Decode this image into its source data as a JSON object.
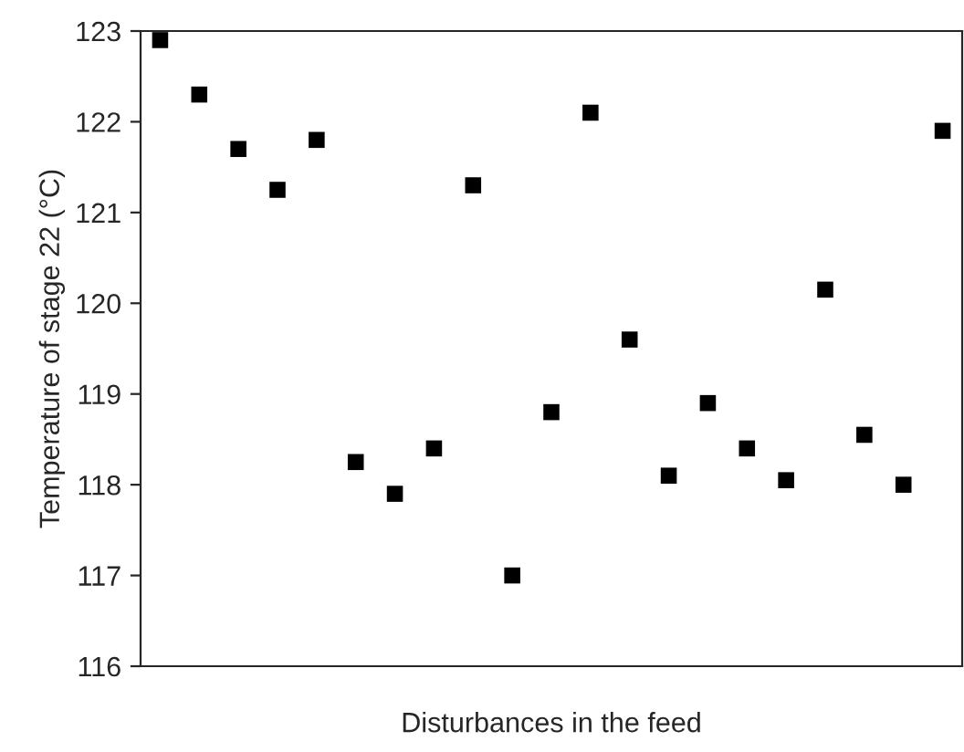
{
  "chart_data": {
    "type": "scatter",
    "xlabel": "Disturbances in the feed",
    "ylabel": "Temperature of stage 22 (°C)",
    "categories": [
      null,
      null,
      null,
      null,
      null,
      null,
      null,
      null,
      null,
      null,
      null,
      null,
      null,
      null,
      null,
      null,
      null,
      null,
      null,
      null,
      null
    ],
    "series": [
      {
        "color": "#000000",
        "values": [
          122.9,
          122.3,
          121.7,
          121.25,
          121.8,
          118.25,
          117.9,
          118.4,
          121.3,
          117.0,
          118.8,
          122.1,
          119.6,
          118.1,
          118.9,
          118.4,
          118.05,
          120.15,
          118.55,
          118.0,
          121.9
        ]
      }
    ],
    "ylim": [
      116,
      123
    ],
    "yticks": [
      116,
      117,
      118,
      119,
      120,
      121,
      122,
      123
    ],
    "marker": "square",
    "tick_labels": "y"
  }
}
